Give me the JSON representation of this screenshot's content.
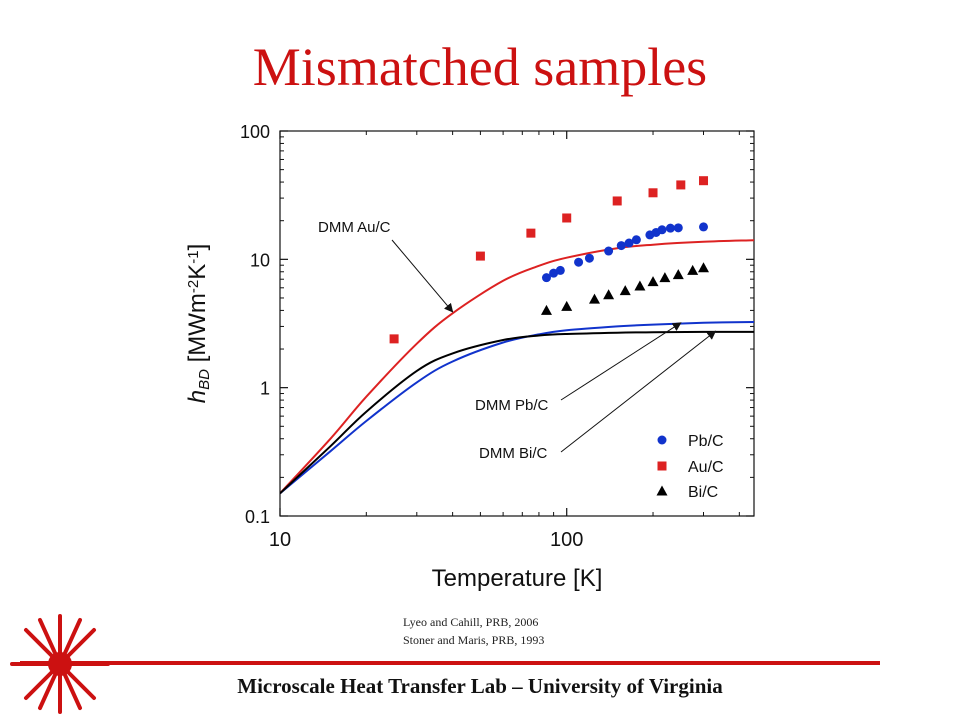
{
  "slide": {
    "title": "Mismatched samples",
    "references": [
      "Lyeo and Cahill, PRB, 2006",
      "Stoner and Maris, PRB, 1993"
    ],
    "footer": "Microscale Heat Transfer Lab – University of Virginia"
  },
  "colors": {
    "accent": "#cc1111",
    "pb": "#1133cc",
    "au": "#dd2222",
    "bi": "#000000"
  },
  "chart_data": {
    "type": "scatter",
    "title": "",
    "xlabel": "Temperature [K]",
    "ylabel": {
      "parts": [
        {
          "text": "h",
          "style": "italic"
        },
        {
          "text": "BD",
          "style": "italic-sub"
        },
        {
          "text": " [MWm"
        },
        {
          "text": "-2",
          "style": "sup"
        },
        {
          "text": "K"
        },
        {
          "text": "-1",
          "style": "sup"
        },
        {
          "text": "]"
        }
      ]
    },
    "xscale": "log",
    "yscale": "log",
    "xlim": [
      10,
      450
    ],
    "ylim": [
      0.1,
      100
    ],
    "xticks": [
      10,
      100
    ],
    "xtick_labels": [
      "10",
      "100"
    ],
    "yticks": [
      0.1,
      1,
      10,
      100
    ],
    "ytick_labels": [
      "0.1",
      "1",
      "10",
      "100"
    ],
    "grid": false,
    "legend": "lower-right",
    "series": [
      {
        "name": "Pb/C",
        "kind": "points",
        "marker": "circle",
        "color": "#1133cc",
        "x": [
          85,
          90,
          95,
          110,
          120,
          140,
          155,
          165,
          175,
          195,
          205,
          215,
          230,
          245,
          300
        ],
        "y": [
          7.2,
          7.8,
          8.2,
          9.5,
          10.2,
          11.6,
          12.8,
          13.4,
          14.2,
          15.5,
          16.2,
          17,
          17.5,
          17.6,
          17.9
        ]
      },
      {
        "name": "Au/C",
        "kind": "points",
        "marker": "square",
        "color": "#dd2222",
        "x": [
          25,
          50,
          75,
          100,
          150,
          200,
          250,
          300
        ],
        "y": [
          2.4,
          10.6,
          16,
          21,
          28.5,
          33,
          38,
          41
        ]
      },
      {
        "name": "Bi/C",
        "kind": "points",
        "marker": "triangle",
        "color": "#000000",
        "x": [
          85,
          100,
          125,
          140,
          160,
          180,
          200,
          220,
          245,
          275,
          300
        ],
        "y": [
          4.0,
          4.3,
          4.9,
          5.3,
          5.7,
          6.2,
          6.7,
          7.2,
          7.6,
          8.2,
          8.6
        ]
      },
      {
        "name": "DMM Au/C",
        "kind": "curve",
        "color": "#dd2222",
        "x": [
          10,
          15,
          20,
          30,
          40,
          60,
          80,
          100,
          150,
          200,
          300,
          450
        ],
        "y": [
          0.15,
          0.4,
          0.85,
          2.2,
          3.8,
          6.8,
          8.9,
          10.3,
          12.2,
          13.0,
          13.7,
          14.1
        ]
      },
      {
        "name": "DMM Pb/C",
        "kind": "curve",
        "color": "#1133cc",
        "x": [
          10,
          15,
          20,
          30,
          40,
          60,
          80,
          100,
          150,
          200,
          300,
          450
        ],
        "y": [
          0.15,
          0.32,
          0.55,
          1.1,
          1.6,
          2.25,
          2.6,
          2.8,
          3.0,
          3.1,
          3.2,
          3.25
        ]
      },
      {
        "name": "DMM Bi/C",
        "kind": "curve",
        "color": "#000000",
        "x": [
          10,
          15,
          20,
          30,
          40,
          60,
          80,
          100,
          150,
          200,
          300,
          450
        ],
        "y": [
          0.15,
          0.35,
          0.65,
          1.35,
          1.85,
          2.35,
          2.55,
          2.62,
          2.68,
          2.7,
          2.72,
          2.72
        ]
      }
    ],
    "annotations": [
      {
        "text": "DMM Au/C",
        "points_to": {
          "x": 40,
          "y": 3.9
        }
      },
      {
        "text": "DMM Pb/C",
        "points_to": {
          "x": 250,
          "y": 3.2
        }
      },
      {
        "text": "DMM Bi/C",
        "points_to": {
          "x": 330,
          "y": 2.75
        }
      }
    ]
  }
}
